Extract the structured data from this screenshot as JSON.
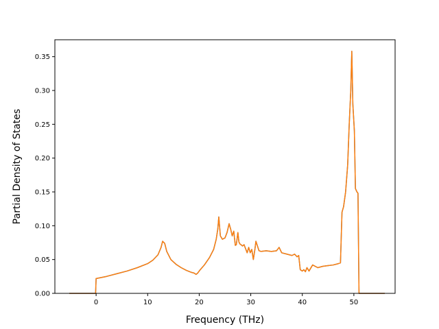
{
  "chart_data": {
    "type": "line",
    "title": "",
    "xlabel": "Frequency (THz)",
    "ylabel": "Partial Density of States",
    "xlim": [
      -8.0,
      58.0
    ],
    "ylim": [
      0.0,
      0.375
    ],
    "xticks": [
      0,
      10,
      20,
      30,
      40,
      50
    ],
    "yticks": [
      0.0,
      0.05,
      0.1,
      0.15,
      0.2,
      0.25,
      0.3,
      0.35
    ],
    "ytick_labels": [
      "0.00",
      "0.05",
      "0.10",
      "0.15",
      "0.20",
      "0.25",
      "0.30",
      "0.35"
    ],
    "grid": false,
    "legend": "none",
    "series": [
      {
        "color": "#1f77b4",
        "x": [
          -5.2,
          -0.1,
          0.0,
          0.1,
          2,
          4,
          6,
          8,
          10,
          11,
          12,
          12.6,
          12.9,
          13.3,
          13.7,
          14.5,
          15.5,
          16.5,
          17.5,
          18.5,
          19.0,
          19.4,
          19.7,
          20.2,
          21.0,
          22.0,
          22.8,
          23.3,
          23.6,
          23.8,
          24.1,
          24.5,
          25.0,
          25.4,
          25.8,
          26.1,
          26.4,
          26.7,
          27.0,
          27.2,
          27.5,
          27.7,
          27.9,
          28.1,
          28.4,
          28.7,
          29.0,
          29.3,
          29.6,
          29.9,
          30.2,
          30.5,
          30.8,
          31.0,
          31.3,
          31.6,
          32.0,
          33.0,
          34.0,
          35.0,
          35.5,
          36.0,
          37.0,
          38.0,
          38.5,
          39.0,
          39.3,
          39.6,
          40.0,
          40.3,
          40.6,
          40.9,
          41.3,
          42.0,
          43.0,
          44.0,
          45.0,
          46.0,
          47.0,
          47.4,
          47.7,
          48.0,
          48.4,
          48.8,
          49.1,
          49.4,
          49.6,
          49.8,
          50.1,
          50.3,
          50.6,
          50.8,
          51.0,
          51.3,
          52.0,
          54.0,
          56.0
        ],
        "y": [
          0.0,
          0.0,
          0.022,
          0.022,
          0.025,
          0.029,
          0.033,
          0.038,
          0.044,
          0.049,
          0.057,
          0.068,
          0.077,
          0.074,
          0.062,
          0.05,
          0.043,
          0.038,
          0.034,
          0.031,
          0.03,
          0.028,
          0.03,
          0.035,
          0.042,
          0.053,
          0.065,
          0.08,
          0.095,
          0.113,
          0.085,
          0.08,
          0.082,
          0.09,
          0.103,
          0.095,
          0.085,
          0.092,
          0.071,
          0.072,
          0.09,
          0.076,
          0.073,
          0.072,
          0.07,
          0.072,
          0.066,
          0.06,
          0.068,
          0.06,
          0.065,
          0.05,
          0.065,
          0.077,
          0.07,
          0.063,
          0.062,
          0.063,
          0.062,
          0.063,
          0.068,
          0.06,
          0.058,
          0.056,
          0.058,
          0.054,
          0.056,
          0.035,
          0.033,
          0.035,
          0.032,
          0.038,
          0.033,
          0.042,
          0.038,
          0.04,
          0.041,
          0.042,
          0.044,
          0.045,
          0.12,
          0.128,
          0.15,
          0.19,
          0.25,
          0.3,
          0.358,
          0.28,
          0.24,
          0.155,
          0.15,
          0.148,
          0.0,
          0.0,
          0.0,
          0.0,
          0.0
        ]
      },
      {
        "color": "#ff7f0e",
        "x": [
          -5.2,
          -0.1,
          0.0,
          0.1,
          2,
          4,
          6,
          8,
          10,
          11,
          12,
          12.6,
          12.9,
          13.3,
          13.7,
          14.5,
          15.5,
          16.5,
          17.5,
          18.5,
          19.0,
          19.4,
          19.7,
          20.2,
          21.0,
          22.0,
          22.8,
          23.3,
          23.6,
          23.8,
          24.1,
          24.5,
          25.0,
          25.4,
          25.8,
          26.1,
          26.4,
          26.7,
          27.0,
          27.2,
          27.5,
          27.7,
          27.9,
          28.1,
          28.4,
          28.7,
          29.0,
          29.3,
          29.6,
          29.9,
          30.2,
          30.5,
          30.8,
          31.0,
          31.3,
          31.6,
          32.0,
          33.0,
          34.0,
          35.0,
          35.5,
          36.0,
          37.0,
          38.0,
          38.5,
          39.0,
          39.3,
          39.6,
          40.0,
          40.3,
          40.6,
          40.9,
          41.3,
          42.0,
          43.0,
          44.0,
          45.0,
          46.0,
          47.0,
          47.4,
          47.7,
          48.0,
          48.4,
          48.8,
          49.1,
          49.4,
          49.6,
          49.8,
          50.1,
          50.3,
          50.6,
          50.8,
          51.0,
          51.3,
          52.0,
          54.0,
          56.0
        ],
        "y": [
          0.0,
          0.0,
          0.022,
          0.022,
          0.025,
          0.029,
          0.033,
          0.038,
          0.044,
          0.049,
          0.057,
          0.068,
          0.077,
          0.074,
          0.062,
          0.05,
          0.043,
          0.038,
          0.034,
          0.031,
          0.03,
          0.028,
          0.03,
          0.035,
          0.042,
          0.053,
          0.065,
          0.08,
          0.095,
          0.113,
          0.085,
          0.08,
          0.082,
          0.09,
          0.103,
          0.095,
          0.085,
          0.092,
          0.071,
          0.072,
          0.09,
          0.076,
          0.073,
          0.072,
          0.07,
          0.072,
          0.066,
          0.06,
          0.068,
          0.06,
          0.065,
          0.05,
          0.065,
          0.077,
          0.07,
          0.063,
          0.062,
          0.063,
          0.062,
          0.063,
          0.068,
          0.06,
          0.058,
          0.056,
          0.058,
          0.054,
          0.056,
          0.035,
          0.033,
          0.035,
          0.032,
          0.038,
          0.033,
          0.042,
          0.038,
          0.04,
          0.041,
          0.042,
          0.044,
          0.045,
          0.12,
          0.128,
          0.15,
          0.19,
          0.25,
          0.3,
          0.358,
          0.28,
          0.24,
          0.155,
          0.15,
          0.148,
          0.0,
          0.0,
          0.0,
          0.0,
          0.0
        ]
      }
    ]
  }
}
